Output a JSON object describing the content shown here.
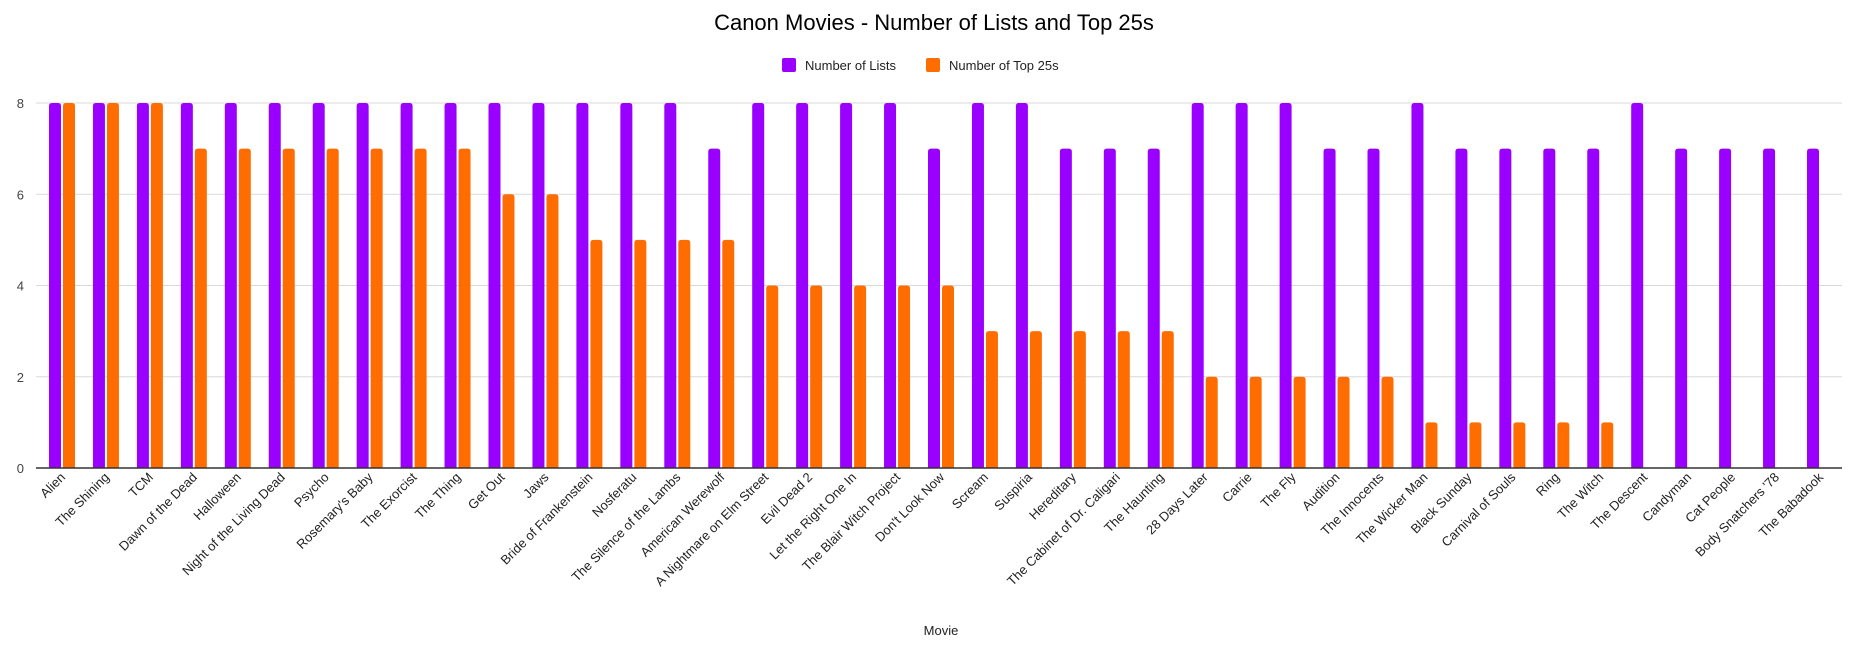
{
  "chart_data": {
    "type": "bar",
    "title": "Canon Movies - Number of Lists and Top 25s",
    "xlabel": "Movie",
    "ylabel": "",
    "ylim": [
      0,
      8
    ],
    "yticks": [
      0,
      2,
      4,
      6,
      8
    ],
    "grid": true,
    "legend_position": "top-center",
    "categories": [
      "Alien",
      "The Shining",
      "TCM",
      "Dawn of the Dead",
      "Halloween",
      "Night of the Living Dead",
      "Psycho",
      "Rosemary's Baby",
      "The Exorcist",
      "The Thing",
      "Get Out",
      "Jaws",
      "Bride of Frankenstein",
      "Nosferatu",
      "The Silence of the Lambs",
      "American Werewolf",
      "A Nightmare on Elm Street",
      "Evil Dead 2",
      "Let the Right One In",
      "The Blair Witch Project",
      "Don't Look Now",
      "Scream",
      "Suspiria",
      "Hereditary",
      "The Cabinet of Dr. Caligari",
      "The Haunting",
      "28 Days Later",
      "Carrie",
      "The Fly",
      "Audition",
      "The Innocents",
      "The Wicker Man",
      "Black Sunday",
      "Carnival of Souls",
      "Ring",
      "The Witch",
      "The Descent",
      "Candyman",
      "Cat People",
      "Body Snatchers '78",
      "The Babadook"
    ],
    "series": [
      {
        "name": "Number of Lists",
        "color": "#9900ff",
        "values": [
          8,
          8,
          8,
          8,
          8,
          8,
          8,
          8,
          8,
          8,
          8,
          8,
          8,
          8,
          8,
          7,
          8,
          8,
          8,
          8,
          7,
          8,
          8,
          7,
          7,
          7,
          8,
          8,
          8,
          7,
          7,
          8,
          7,
          7,
          7,
          7,
          8,
          7,
          7,
          7,
          7
        ]
      },
      {
        "name": "Number of Top 25s",
        "color": "#ff6d01",
        "values": [
          8,
          8,
          8,
          7,
          7,
          7,
          7,
          7,
          7,
          7,
          6,
          6,
          5,
          5,
          5,
          5,
          4,
          4,
          4,
          4,
          4,
          3,
          3,
          3,
          3,
          3,
          2,
          2,
          2,
          2,
          2,
          1,
          1,
          1,
          1,
          1,
          0,
          0,
          0,
          0,
          0
        ]
      }
    ]
  }
}
